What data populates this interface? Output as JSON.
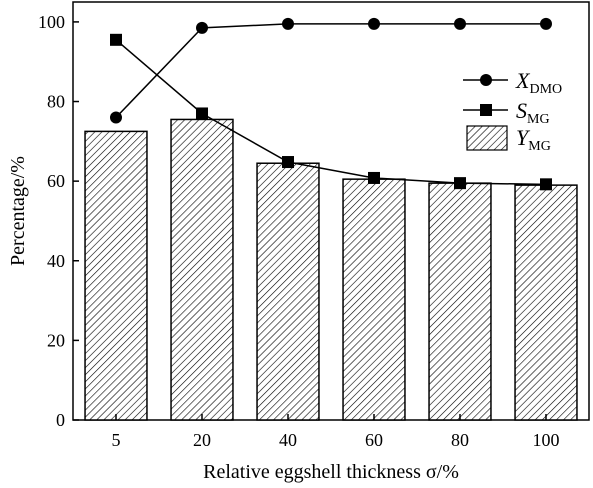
{
  "chart_data": {
    "type": "bar",
    "categories": [
      "5",
      "20",
      "40",
      "60",
      "80",
      "100"
    ],
    "series": [
      {
        "name": "Y",
        "name_sub": "MG",
        "kind": "bar",
        "values": [
          72.5,
          75.5,
          64.5,
          60.5,
          59.5,
          59.0
        ]
      },
      {
        "name": "X",
        "name_sub": "DMO",
        "kind": "line",
        "marker": "circle",
        "values": [
          76.0,
          98.5,
          99.5,
          99.5,
          99.5,
          99.5
        ]
      },
      {
        "name": "S",
        "name_sub": "MG",
        "kind": "line",
        "marker": "square",
        "values": [
          95.5,
          77.0,
          64.8,
          60.8,
          59.5,
          59.2
        ]
      }
    ],
    "xlabel": "Relative eggshell thickness σ/%",
    "ylabel": "Percentage/%",
    "ylim": [
      0,
      105
    ],
    "yticks": [
      0,
      20,
      40,
      60,
      80,
      100
    ],
    "grid": false,
    "legend_position": "top-right",
    "bar_pattern": "diagonal-hatch",
    "colors": {
      "line": "#000000",
      "bar_fill": "#ffffff",
      "hatch": "#000000"
    }
  }
}
